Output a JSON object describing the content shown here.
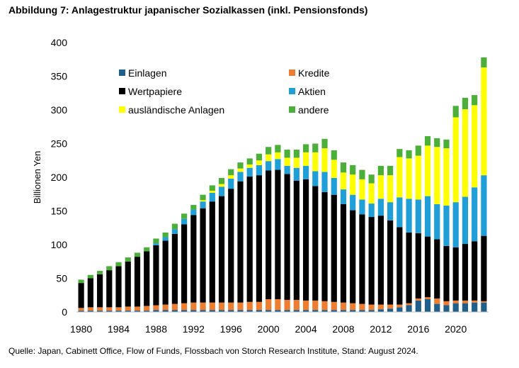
{
  "title": "Abbildung 7: Anlagestruktur japanischer Sozialkassen (inkl. Pensionsfonds)",
  "source": "Quelle: Japan, Cabinett Office, Flow of Funds, Flossbach von Storch Research Institute, Stand: August 2024.",
  "colors": {
    "Einlagen": "#1f5f8b",
    "Kredite": "#ed7d31",
    "Wertpapiere": "#000000",
    "Aktien": "#1f9ed8",
    "ausländische Anlagen": "#ffff00",
    "andere": "#4caf3a"
  },
  "chart_data": {
    "type": "bar",
    "stacked": true,
    "ylabel": "Billionen Yen",
    "xlabel": "",
    "ylim": [
      0,
      400
    ],
    "yticks": [
      0,
      50,
      100,
      150,
      200,
      250,
      300,
      350,
      400
    ],
    "xtick_labels": [
      "1980",
      "1984",
      "1988",
      "1992",
      "1996",
      "2000",
      "2004",
      "2008",
      "2012",
      "2016",
      "2020"
    ],
    "legend_position": "top-left, inside plot, two columns",
    "categories": [
      "1980",
      "1981",
      "1982",
      "1983",
      "1984",
      "1985",
      "1986",
      "1987",
      "1988",
      "1989",
      "1990",
      "1991",
      "1992",
      "1993",
      "1994",
      "1995",
      "1996",
      "1997",
      "1998",
      "1999",
      "2000",
      "2001",
      "2002",
      "2003",
      "2004",
      "2005",
      "2006",
      "2007",
      "2008",
      "2009",
      "2010",
      "2011",
      "2012",
      "2013",
      "2014",
      "2015",
      "2016",
      "2017",
      "2018",
      "2019",
      "2020",
      "2021",
      "2022",
      "2023"
    ],
    "series": [
      {
        "name": "Einlagen",
        "values": [
          2,
          2,
          2,
          2,
          2,
          2,
          2,
          2,
          3,
          3,
          3,
          3,
          3,
          3,
          3,
          3,
          3,
          3,
          3,
          3,
          3,
          3,
          3,
          3,
          3,
          3,
          3,
          3,
          3,
          3,
          3,
          3,
          4,
          5,
          7,
          10,
          17,
          19,
          12,
          10,
          13,
          13,
          14,
          14
        ]
      },
      {
        "name": "Kredite",
        "values": [
          4,
          5,
          5,
          5,
          5,
          6,
          6,
          7,
          7,
          8,
          9,
          10,
          11,
          11,
          11,
          11,
          11,
          11,
          12,
          12,
          16,
          16,
          15,
          15,
          14,
          14,
          13,
          12,
          11,
          10,
          9,
          8,
          7,
          6,
          4,
          3,
          3,
          3,
          8,
          6,
          4,
          4,
          3,
          2
        ]
      },
      {
        "name": "Wertpapiere",
        "values": [
          37,
          43,
          49,
          55,
          61,
          67,
          74,
          81,
          89,
          95,
          104,
          117,
          130,
          140,
          150,
          158,
          169,
          180,
          186,
          188,
          191,
          192,
          187,
          177,
          180,
          170,
          162,
          159,
          146,
          138,
          133,
          130,
          132,
          125,
          115,
          105,
          97,
          90,
          88,
          82,
          79,
          84,
          88,
          97
        ]
      },
      {
        "name": "Aktien",
        "values": [
          0,
          0,
          0,
          0,
          0,
          0,
          0,
          0,
          3,
          5,
          7,
          8,
          8,
          10,
          13,
          14,
          15,
          14,
          13,
          15,
          14,
          16,
          12,
          19,
          20,
          22,
          30,
          25,
          22,
          23,
          22,
          20,
          25,
          27,
          44,
          50,
          50,
          60,
          52,
          60,
          67,
          70,
          80,
          90
        ]
      },
      {
        "name": "ausländische Anlagen",
        "values": [
          0,
          0,
          0,
          0,
          0,
          0,
          0,
          0,
          0,
          0,
          0,
          0,
          0,
          2,
          3,
          4,
          5,
          5,
          5,
          7,
          10,
          10,
          12,
          15,
          20,
          28,
          35,
          27,
          25,
          30,
          30,
          30,
          35,
          40,
          60,
          60,
          65,
          75,
          85,
          85,
          126,
          130,
          122,
          160
        ]
      },
      {
        "name": "andere",
        "values": [
          5,
          5,
          5,
          6,
          6,
          6,
          6,
          6,
          7,
          7,
          8,
          8,
          7,
          8,
          8,
          9,
          9,
          9,
          9,
          10,
          11,
          11,
          12,
          12,
          12,
          13,
          14,
          14,
          15,
          14,
          14,
          13,
          14,
          14,
          12,
          12,
          15,
          14,
          13,
          13,
          17,
          17,
          15,
          15
        ]
      }
    ]
  }
}
